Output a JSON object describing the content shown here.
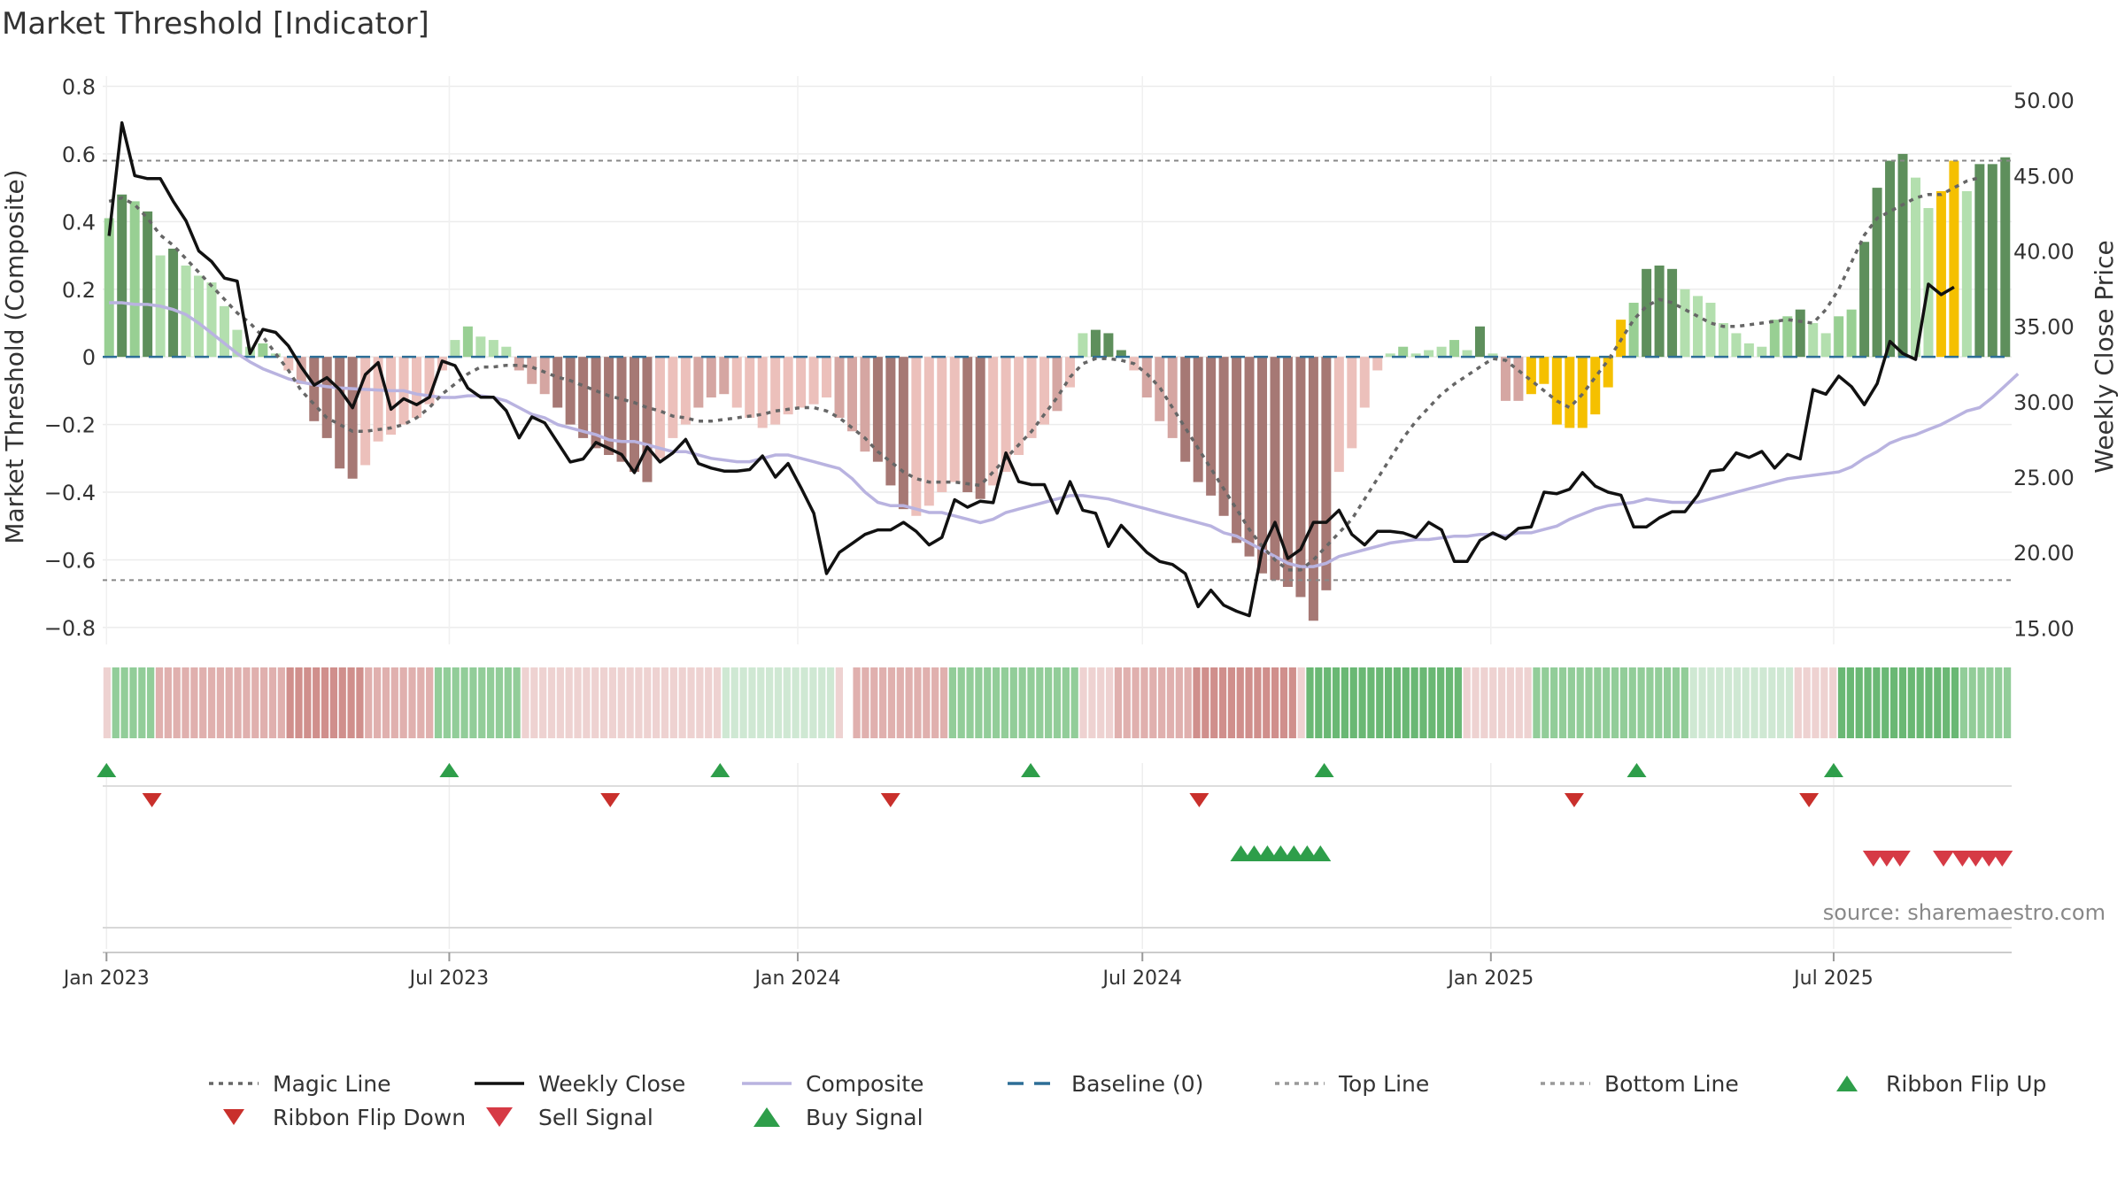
{
  "title": "Market Threshold [Indicator]",
  "source": "source: sharemaestro.com",
  "colors": {
    "close": "#111111",
    "composite": "#b9b3e0",
    "magic": "#666666",
    "baseline": "#2d6e96",
    "threshold": "#888888",
    "extreme_bar": "#f5c000",
    "buy": "#2e9e4a",
    "sell": "#d63a45",
    "ribbon_flip_down": "#c9302c"
  },
  "chart_data": {
    "type": "bar",
    "title": "Market Threshold [Indicator]",
    "ylabel": "Market Threshold (Composite)",
    "y2label": "Weekly Close Price",
    "ylim": [
      -0.85,
      0.83
    ],
    "y2lim": [
      13.9,
      51.6
    ],
    "yticks": [
      0.8,
      0.6,
      0.4,
      0.2,
      0,
      -0.2,
      -0.4,
      -0.6,
      -0.8
    ],
    "yticklabels": [
      "0.8",
      "0.6",
      "0.4",
      "0.2",
      "0",
      "−0.2",
      "−0.4",
      "−0.6",
      "−0.8"
    ],
    "y2ticks": [
      50,
      45,
      40,
      35,
      30,
      25,
      20,
      15
    ],
    "y2ticklabels": [
      "50.00",
      "45.00",
      "40.00",
      "35.00",
      "30.00",
      "25.00",
      "20.00",
      "15.00"
    ],
    "x_start": "2022-12-30",
    "x_end": "2025-10-03",
    "xticks": [
      {
        "date": "2023-01-01",
        "label": "Jan 2023"
      },
      {
        "date": "2023-07-01",
        "label": "Jul 2023"
      },
      {
        "date": "2024-01-01",
        "label": "Jan 2024"
      },
      {
        "date": "2024-07-01",
        "label": "Jul 2024"
      },
      {
        "date": "2025-01-01",
        "label": "Jan 2025"
      },
      {
        "date": "2025-07-01",
        "label": "Jul 2025"
      }
    ],
    "top_line": 0.58,
    "bottom_line": -0.66,
    "grid": true,
    "legend_position": "bottom",
    "composite_bars": [
      0.41,
      0.48,
      0.46,
      0.43,
      0.3,
      0.32,
      0.27,
      0.24,
      0.22,
      0.15,
      0.08,
      0.03,
      0.04,
      0.01,
      -0.04,
      -0.08,
      -0.19,
      -0.24,
      -0.33,
      -0.36,
      -0.32,
      -0.25,
      -0.23,
      -0.2,
      -0.18,
      -0.14,
      -0.04,
      0.05,
      0.09,
      0.06,
      0.05,
      0.03,
      -0.04,
      -0.08,
      -0.11,
      -0.15,
      -0.2,
      -0.24,
      -0.27,
      -0.29,
      -0.31,
      -0.34,
      -0.37,
      -0.3,
      -0.24,
      -0.2,
      -0.15,
      -0.12,
      -0.11,
      -0.15,
      -0.18,
      -0.21,
      -0.2,
      -0.17,
      -0.15,
      -0.14,
      -0.12,
      -0.18,
      -0.22,
      -0.28,
      -0.31,
      -0.38,
      -0.45,
      -0.47,
      -0.44,
      -0.4,
      -0.37,
      -0.4,
      -0.42,
      -0.38,
      -0.34,
      -0.29,
      -0.24,
      -0.2,
      -0.16,
      -0.09,
      0.07,
      0.08,
      0.07,
      0.02,
      -0.04,
      -0.12,
      -0.19,
      -0.24,
      -0.31,
      -0.37,
      -0.41,
      -0.47,
      -0.55,
      -0.59,
      -0.64,
      -0.66,
      -0.68,
      -0.71,
      -0.78,
      -0.69,
      -0.34,
      -0.27,
      -0.15,
      -0.04,
      0.01,
      0.03,
      0.01,
      0.02,
      0.03,
      0.05,
      0.02,
      0.09,
      0.01,
      -0.13,
      -0.13,
      -0.11,
      -0.08,
      -0.2,
      -0.21,
      -0.21,
      -0.17,
      -0.09,
      0.11,
      0.16,
      0.26,
      0.27,
      0.26,
      0.2,
      0.18,
      0.16,
      0.1,
      0.07,
      0.04,
      0.03,
      0.11,
      0.12,
      0.14,
      0.1,
      0.07,
      0.12,
      0.14,
      0.34,
      0.5,
      0.58,
      0.6,
      0.53,
      0.44,
      0.49,
      0.58,
      0.49,
      0.57,
      0.57,
      0.59
    ],
    "composite_line": [
      0.16,
      0.16,
      0.155,
      0.155,
      0.15,
      0.14,
      0.125,
      0.1,
      0.07,
      0.04,
      0.01,
      -0.015,
      -0.035,
      -0.05,
      -0.065,
      -0.075,
      -0.082,
      -0.088,
      -0.092,
      -0.094,
      -0.096,
      -0.098,
      -0.1,
      -0.1,
      -0.11,
      -0.115,
      -0.12,
      -0.12,
      -0.115,
      -0.115,
      -0.12,
      -0.13,
      -0.15,
      -0.17,
      -0.18,
      -0.2,
      -0.21,
      -0.22,
      -0.23,
      -0.245,
      -0.25,
      -0.25,
      -0.26,
      -0.27,
      -0.28,
      -0.28,
      -0.29,
      -0.3,
      -0.305,
      -0.31,
      -0.31,
      -0.3,
      -0.29,
      -0.29,
      -0.3,
      -0.31,
      -0.32,
      -0.33,
      -0.36,
      -0.4,
      -0.43,
      -0.44,
      -0.44,
      -0.45,
      -0.46,
      -0.46,
      -0.47,
      -0.48,
      -0.49,
      -0.48,
      -0.46,
      -0.45,
      -0.44,
      -0.43,
      -0.42,
      -0.41,
      -0.41,
      -0.415,
      -0.42,
      -0.43,
      -0.44,
      -0.45,
      -0.46,
      -0.47,
      -0.48,
      -0.49,
      -0.5,
      -0.52,
      -0.53,
      -0.55,
      -0.57,
      -0.59,
      -0.61,
      -0.62,
      -0.62,
      -0.61,
      -0.59,
      -0.58,
      -0.57,
      -0.56,
      -0.55,
      -0.545,
      -0.54,
      -0.54,
      -0.535,
      -0.53,
      -0.53,
      -0.525,
      -0.525,
      -0.53,
      -0.52,
      -0.52,
      -0.51,
      -0.5,
      -0.48,
      -0.465,
      -0.45,
      -0.44,
      -0.435,
      -0.43,
      -0.42,
      -0.425,
      -0.43,
      -0.43,
      -0.43,
      -0.42,
      -0.41,
      -0.4,
      -0.39,
      -0.38,
      -0.37,
      -0.36,
      -0.355,
      -0.35,
      -0.345,
      -0.34,
      -0.325,
      -0.3,
      -0.28,
      -0.255,
      -0.24,
      -0.23,
      -0.215,
      -0.2,
      -0.18,
      -0.16,
      -0.15,
      -0.12,
      -0.085,
      -0.05
    ],
    "magic_line": [
      0.46,
      0.47,
      0.45,
      0.41,
      0.36,
      0.33,
      0.29,
      0.25,
      0.21,
      0.17,
      0.13,
      0.1,
      0.06,
      0.01,
      -0.04,
      -0.1,
      -0.14,
      -0.18,
      -0.2,
      -0.22,
      -0.22,
      -0.215,
      -0.21,
      -0.2,
      -0.18,
      -0.15,
      -0.11,
      -0.08,
      -0.05,
      -0.03,
      -0.03,
      -0.025,
      -0.025,
      -0.03,
      -0.045,
      -0.06,
      -0.07,
      -0.085,
      -0.1,
      -0.115,
      -0.125,
      -0.135,
      -0.15,
      -0.16,
      -0.175,
      -0.18,
      -0.19,
      -0.19,
      -0.185,
      -0.18,
      -0.175,
      -0.17,
      -0.16,
      -0.155,
      -0.15,
      -0.15,
      -0.16,
      -0.18,
      -0.21,
      -0.24,
      -0.28,
      -0.31,
      -0.34,
      -0.36,
      -0.37,
      -0.37,
      -0.37,
      -0.375,
      -0.38,
      -0.34,
      -0.3,
      -0.26,
      -0.22,
      -0.17,
      -0.12,
      -0.06,
      -0.02,
      -0.005,
      -0.005,
      -0.01,
      -0.02,
      -0.05,
      -0.09,
      -0.15,
      -0.21,
      -0.27,
      -0.33,
      -0.39,
      -0.45,
      -0.51,
      -0.56,
      -0.6,
      -0.63,
      -0.63,
      -0.6,
      -0.56,
      -0.52,
      -0.48,
      -0.42,
      -0.36,
      -0.3,
      -0.24,
      -0.19,
      -0.15,
      -0.11,
      -0.08,
      -0.055,
      -0.03,
      -0.005,
      -0.01,
      -0.04,
      -0.07,
      -0.1,
      -0.13,
      -0.15,
      -0.11,
      -0.06,
      -0.01,
      0.05,
      0.11,
      0.15,
      0.17,
      0.16,
      0.14,
      0.12,
      0.1,
      0.09,
      0.09,
      0.095,
      0.1,
      0.105,
      0.11,
      0.105,
      0.1,
      0.14,
      0.2,
      0.28,
      0.36,
      0.41,
      0.43,
      0.45,
      0.47,
      0.48,
      0.48,
      0.5,
      0.52,
      0.53
    ],
    "weekly_close": [
      41.0,
      48.5,
      45.0,
      44.8,
      44.8,
      43.3,
      42.0,
      40.0,
      39.3,
      38.2,
      38.0,
      33.2,
      34.8,
      34.6,
      33.7,
      32.3,
      31.1,
      31.6,
      30.8,
      29.6,
      31.8,
      32.6,
      29.5,
      30.2,
      29.8,
      30.3,
      32.7,
      32.4,
      30.9,
      30.3,
      30.3,
      29.4,
      27.6,
      29.0,
      28.6,
      27.3,
      26.0,
      26.2,
      27.3,
      26.9,
      26.5,
      25.3,
      27.0,
      26.0,
      26.6,
      27.5,
      25.9,
      25.6,
      25.4,
      25.4,
      25.5,
      26.4,
      25.0,
      25.9,
      24.3,
      22.6,
      18.6,
      20.0,
      20.6,
      21.2,
      21.5,
      21.5,
      22.0,
      21.4,
      20.5,
      21.0,
      23.5,
      23.0,
      23.4,
      23.3,
      26.6,
      24.7,
      24.5,
      24.5,
      22.6,
      24.7,
      22.8,
      22.6,
      20.4,
      21.8,
      20.9,
      20.0,
      19.4,
      19.2,
      18.6,
      16.4,
      17.5,
      16.5,
      16.1,
      15.8,
      20.2,
      22.0,
      19.6,
      20.2,
      22.0,
      22.0,
      22.8,
      21.2,
      20.5,
      21.4,
      21.4,
      21.3,
      21.0,
      22.0,
      21.5,
      19.4,
      19.4,
      20.8,
      21.3,
      20.9,
      21.6,
      21.7,
      24.0,
      23.9,
      24.2,
      25.3,
      24.4,
      24.0,
      23.8,
      21.7,
      21.7,
      22.3,
      22.7,
      22.7,
      23.8,
      25.4,
      25.5,
      26.6,
      26.3,
      26.7,
      25.6,
      26.5,
      26.2,
      30.8,
      30.5,
      31.7,
      31.0,
      29.8,
      31.2,
      34.0,
      33.2,
      32.8,
      37.8,
      37.1,
      37.6
    ],
    "bar_shades": [
      2,
      3,
      2,
      3,
      1,
      3,
      1,
      1,
      1,
      1,
      1,
      1,
      2,
      1,
      -1,
      -2,
      -3,
      -3,
      -3,
      -3,
      -1,
      -1,
      -1,
      -1,
      -1,
      -1,
      -1,
      1,
      2,
      1,
      1,
      1,
      -2,
      -2,
      -2,
      -3,
      -3,
      -3,
      -3,
      -3,
      -3,
      -3,
      -3,
      -1,
      -1,
      -1,
      -2,
      -2,
      -2,
      -1,
      -1,
      -1,
      -1,
      -1,
      -1,
      -1,
      -1,
      -2,
      -2,
      -2,
      -3,
      -3,
      -3,
      -1,
      -1,
      -1,
      -1,
      -3,
      -3,
      -1,
      -1,
      -1,
      -1,
      -1,
      -2,
      -1,
      1,
      3,
      3,
      3,
      1,
      -2,
      -2,
      -2,
      -3,
      -3,
      -3,
      -3,
      -3,
      -3,
      -3,
      -3,
      -3,
      -3,
      -3,
      -3,
      -1,
      -1,
      -1,
      -1,
      1,
      2,
      1,
      1,
      1,
      2,
      1,
      3,
      1,
      -2,
      -2,
      -2,
      -2,
      -3,
      -3,
      -3,
      -1,
      -1,
      1,
      2,
      3,
      3,
      3,
      1,
      1,
      1,
      1,
      1,
      1,
      1,
      2,
      2,
      3,
      1,
      1,
      2,
      2,
      3,
      3,
      3,
      3,
      1,
      1,
      3,
      3,
      1,
      3,
      3,
      3
    ],
    "extreme_bars": [
      111,
      112,
      113,
      114,
      115,
      116,
      117,
      118,
      143,
      144,
      149,
      151,
      152,
      153
    ],
    "ribbon": [
      -1,
      2,
      2,
      2,
      2,
      2,
      -2,
      -2,
      -2,
      -2,
      -2,
      -2,
      -2,
      -2,
      -2,
      -2,
      -2,
      -2,
      -2,
      -2,
      -2,
      -3,
      -3,
      -3,
      -3,
      -3,
      -3,
      -3,
      -3,
      -3,
      -2,
      -2,
      -2,
      -2,
      -2,
      -2,
      -2,
      -2,
      2,
      2,
      2,
      2,
      2,
      2,
      2,
      2,
      2,
      2,
      -1,
      -1,
      -1,
      -1,
      -1,
      -1,
      -1,
      -1,
      -1,
      -1,
      -1,
      -1,
      -1,
      -1,
      -1,
      -1,
      -1,
      -1,
      -1,
      -1,
      -1,
      -1,
      -1,
      1,
      1,
      1,
      1,
      1,
      1,
      1,
      1,
      1,
      1,
      1,
      1,
      1,
      -1,
      0,
      -2,
      -2,
      -2,
      -2,
      -2,
      -2,
      -2,
      -2,
      -2,
      -2,
      -2,
      2,
      2,
      2,
      2,
      2,
      2,
      2,
      2,
      2,
      2,
      2,
      2,
      2,
      2,
      2,
      -1,
      -1,
      -1,
      -1,
      -2,
      -2,
      -2,
      -2,
      -2,
      -2,
      -2,
      -2,
      -2,
      -3,
      -3,
      -3,
      -3,
      -3,
      -3,
      -3,
      -3,
      -3,
      -3,
      -3,
      -3,
      -1,
      3,
      3,
      3,
      3,
      3,
      3,
      3,
      3,
      3,
      3,
      3,
      3,
      3,
      3,
      3,
      3,
      3,
      3,
      -1,
      -1,
      -1,
      -1,
      -1,
      -1,
      -1,
      -1,
      2,
      2,
      2,
      2,
      2,
      2,
      2,
      2,
      2,
      2,
      2,
      2,
      2,
      2,
      2,
      2,
      2,
      2,
      1,
      1,
      1,
      1,
      1,
      1,
      1,
      1,
      1,
      1,
      1,
      1,
      -1,
      -1,
      -1,
      -1,
      -1,
      3,
      3,
      3,
      3,
      3,
      3,
      3,
      3,
      3,
      3,
      3,
      3,
      3,
      3,
      2,
      2,
      2,
      2,
      2,
      2
    ],
    "ribbon_flip_up": [
      "2023-01-01",
      "2023-07-01",
      "2023-11-21",
      "2024-05-03",
      "2024-10-05",
      "2025-03-19",
      "2025-07-01"
    ],
    "ribbon_flip_down": [
      "2023-01-25",
      "2023-09-24",
      "2024-02-19",
      "2024-07-31",
      "2025-02-14",
      "2025-06-18"
    ],
    "buy_signals": [
      "2024-08-22",
      "2024-08-29",
      "2024-09-05",
      "2024-09-12",
      "2024-09-19",
      "2024-09-26",
      "2024-10-03"
    ],
    "sell_signals": [
      "2025-07-22",
      "2025-07-29",
      "2025-08-05",
      "2025-08-28",
      "2025-09-07",
      "2025-09-14",
      "2025-09-21",
      "2025-09-28"
    ]
  },
  "legend": [
    {
      "label": "Magic Line",
      "kind": "dotted-line",
      "color": "#666666"
    },
    {
      "label": "Weekly Close",
      "kind": "solid-line",
      "color": "#111111"
    },
    {
      "label": "Composite",
      "kind": "solid-line",
      "color": "#b9b3e0"
    },
    {
      "label": "Baseline (0)",
      "kind": "dashed-line",
      "color": "#2d6e96"
    },
    {
      "label": "Top Line",
      "kind": "dotted-line",
      "color": "#999999"
    },
    {
      "label": "Bottom Line",
      "kind": "dotted-line",
      "color": "#999999"
    },
    {
      "label": "Ribbon Flip Up",
      "kind": "triangle-up",
      "color": "#2e9e4a"
    },
    {
      "label": "Ribbon Flip Down",
      "kind": "triangle-down",
      "color": "#c9302c"
    },
    {
      "label": "Sell Signal",
      "kind": "triangle-down-large",
      "color": "#d63a45"
    },
    {
      "label": "Buy Signal",
      "kind": "triangle-up-large",
      "color": "#2e9e4a"
    }
  ]
}
